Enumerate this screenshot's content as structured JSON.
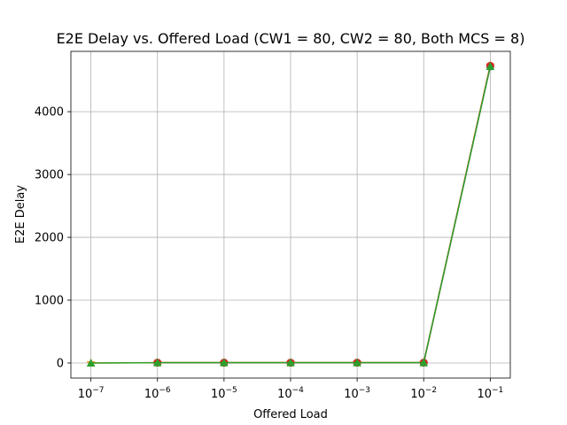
{
  "chart_data": {
    "type": "line",
    "title": "E2E Delay vs. Offered Load (CW1 = 80, CW2 = 80, Both MCS = 8)",
    "xlabel": "Offered Load",
    "ylabel": "E2E Delay",
    "xscale": "log",
    "xlim": [
      5e-08,
      0.2
    ],
    "ylim": [
      -240,
      4960
    ],
    "grid": true,
    "x": [
      1e-07,
      1e-06,
      1e-05,
      0.0001,
      0.001,
      0.01,
      0.1
    ],
    "x_tick_labels": [
      {
        "value": 1e-07,
        "base": "10",
        "exp": "−7"
      },
      {
        "value": 1e-06,
        "base": "10",
        "exp": "−6"
      },
      {
        "value": 1e-05,
        "base": "10",
        "exp": "−5"
      },
      {
        "value": 0.0001,
        "base": "10",
        "exp": "−4"
      },
      {
        "value": 0.001,
        "base": "10",
        "exp": "−3"
      },
      {
        "value": 0.01,
        "base": "10",
        "exp": "−2"
      },
      {
        "value": 0.1,
        "base": "10",
        "exp": "−1"
      }
    ],
    "y_ticks": [
      0,
      1000,
      2000,
      3000,
      4000
    ],
    "y_tick_labels": [
      "0",
      "1000",
      "2000",
      "3000",
      "4000"
    ],
    "series": [
      {
        "color": "#1f77b4",
        "marker": "circle",
        "values": [
          null,
          5,
          5,
          5,
          5,
          5,
          4720
        ]
      },
      {
        "color": "#ff7f0e",
        "marker": "star",
        "values": [
          0,
          5,
          5,
          5,
          5,
          5,
          4740
        ]
      },
      {
        "color": "#d62728",
        "marker": "circle",
        "values": [
          null,
          5,
          5,
          5,
          5,
          5,
          4730
        ]
      },
      {
        "color": "#2ca02c",
        "marker": "triangle",
        "values": [
          0,
          5,
          5,
          5,
          5,
          5,
          4720
        ]
      }
    ]
  }
}
